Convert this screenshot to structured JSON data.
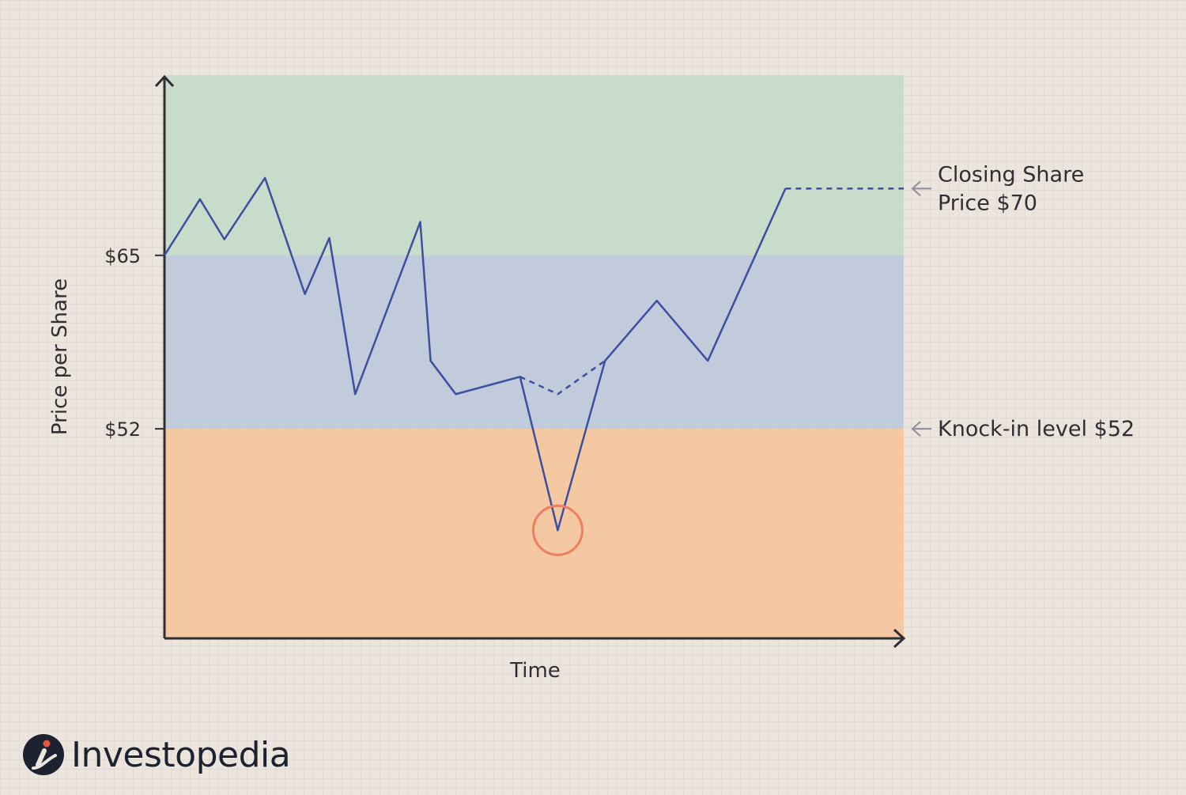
{
  "chart_data": {
    "type": "line",
    "xlabel": "Time",
    "ylabel": "Price per Share",
    "ylim": [
      36.3,
      78.5
    ],
    "y_ticks": [
      {
        "value": 65,
        "label": "$65"
      },
      {
        "value": 52,
        "label": "$52"
      }
    ],
    "bands": [
      {
        "from": 65,
        "to": 78.5,
        "color": "#c8dccc"
      },
      {
        "from": 52,
        "to": 65,
        "color": "#c2cbdc"
      },
      {
        "from": 36.3,
        "to": 52,
        "color": "#f3c8a2"
      }
    ],
    "series": [
      {
        "style": "solid",
        "color": "#3e4fa0",
        "x": [
          0,
          4.8,
          8.1,
          13.6,
          19,
          22.3,
          25.8,
          34.6,
          36,
          39.4,
          48.1,
          53.2,
          59.6,
          66.6,
          73.5,
          84
        ],
        "y": [
          65,
          69.2,
          66.2,
          70.8,
          62.1,
          66.3,
          54.6,
          67.5,
          57.1,
          54.6,
          55.9,
          44.4,
          57.1,
          61.6,
          57.1,
          70
        ]
      },
      {
        "style": "dashed",
        "color": "#3e4fa0",
        "x": [
          48.1,
          53.2,
          59.6
        ],
        "y": [
          55.9,
          54.6,
          57.1
        ]
      },
      {
        "style": "dashed",
        "color": "#3e4fa0",
        "x": [
          84,
          100
        ],
        "y": [
          70,
          70
        ]
      }
    ],
    "highlight": {
      "x": 53.2,
      "y": 44.4,
      "color": "#f07d5e"
    },
    "annotations": [
      {
        "y": 70,
        "lines": [
          "Closing Share",
          "Price $70"
        ]
      },
      {
        "y": 52,
        "lines": [
          "Knock-in level $52"
        ]
      }
    ],
    "grid": false,
    "legend": "none"
  },
  "brand": {
    "name": "Investopedia",
    "icon": "investopedia-logo-icon",
    "colors": {
      "dark": "#1d2230",
      "accent": "#e85440"
    }
  }
}
